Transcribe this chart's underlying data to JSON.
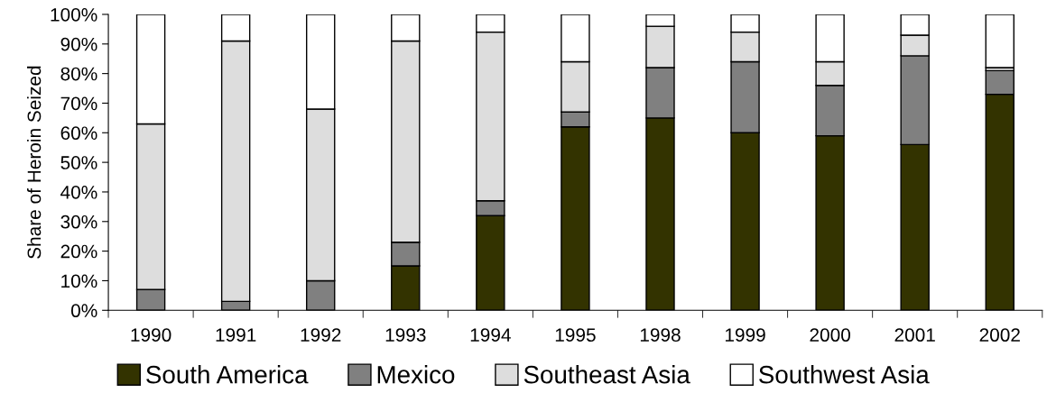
{
  "chart_data": {
    "type": "bar",
    "stacked": true,
    "ylabel": "Share of Heroin Seized",
    "categories": [
      "1990",
      "1991",
      "1992",
      "1993",
      "1994",
      "1995",
      "1998",
      "1999",
      "2000",
      "2001",
      "2002"
    ],
    "series": [
      {
        "name": "South America",
        "color": "#333300",
        "values": [
          0,
          0,
          0,
          15,
          32,
          62,
          65,
          60,
          59,
          56,
          73
        ]
      },
      {
        "name": "Mexico",
        "color": "#808080",
        "values": [
          7,
          3,
          10,
          8,
          5,
          5,
          17,
          24,
          17,
          30,
          8
        ]
      },
      {
        "name": "Southeast Asia",
        "color": "#dddddd",
        "values": [
          56,
          88,
          58,
          68,
          57,
          17,
          14,
          10,
          8,
          7,
          1
        ]
      },
      {
        "name": "Southwest Asia",
        "color": "#ffffff",
        "values": [
          37,
          9,
          32,
          9,
          6,
          16,
          4,
          6,
          16,
          7,
          18
        ]
      }
    ],
    "ylim": [
      0,
      100
    ],
    "yticks": [
      {
        "value": 0,
        "label": "0%"
      },
      {
        "value": 10,
        "label": "10%"
      },
      {
        "value": 20,
        "label": "20%"
      },
      {
        "value": 30,
        "label": "30%"
      },
      {
        "value": 40,
        "label": "40%"
      },
      {
        "value": 50,
        "label": "50%"
      },
      {
        "value": 60,
        "label": "60%"
      },
      {
        "value": 70,
        "label": "70%"
      },
      {
        "value": 80,
        "label": "80%"
      },
      {
        "value": 90,
        "label": "90%"
      },
      {
        "value": 100,
        "label": "100%"
      }
    ],
    "grid": false,
    "legend": "bottom"
  }
}
